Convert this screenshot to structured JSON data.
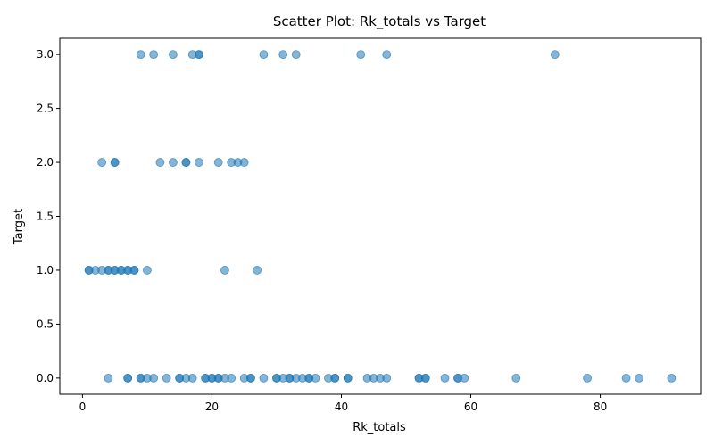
{
  "chart_data": {
    "type": "scatter",
    "title": "Scatter Plot: Rk_totals vs Target",
    "xlabel": "Rk_totals",
    "ylabel": "Target",
    "xlim": [
      -3.5,
      95.5
    ],
    "ylim": [
      -0.15,
      3.15
    ],
    "xticks": [
      0,
      20,
      40,
      60,
      80
    ],
    "xtick_labels": [
      "0",
      "20",
      "40",
      "60",
      "80"
    ],
    "yticks": [
      0.0,
      0.5,
      1.0,
      1.5,
      2.0,
      2.5,
      3.0
    ],
    "ytick_labels": [
      "0.0",
      "0.5",
      "1.0",
      "1.5",
      "2.0",
      "2.5",
      "3.0"
    ],
    "grid": false,
    "marker_color": "#1f77b4",
    "marker_alpha": 0.55,
    "series": [
      {
        "x": [
          9,
          11,
          14,
          17,
          18,
          18,
          28,
          31,
          33,
          43,
          47,
          73,
          3,
          5,
          5,
          12,
          14,
          16,
          16,
          18,
          21,
          23,
          24,
          25,
          1,
          1,
          2,
          3,
          4,
          4,
          5,
          5,
          6,
          6,
          7,
          7,
          8,
          8,
          10,
          22,
          27,
          4,
          7,
          7,
          9,
          9,
          10,
          11,
          13,
          15,
          15,
          16,
          17,
          19,
          19,
          20,
          20,
          21,
          21,
          22,
          23,
          25,
          26,
          26,
          28,
          30,
          30,
          31,
          32,
          32,
          33,
          34,
          35,
          35,
          36,
          38,
          39,
          39,
          41,
          41,
          44,
          45,
          46,
          47,
          52,
          52,
          53,
          53,
          56,
          58,
          58,
          59,
          67,
          78,
          84,
          86,
          91
        ],
        "y": [
          3,
          3,
          3,
          3,
          3,
          3,
          3,
          3,
          3,
          3,
          3,
          3,
          2,
          2,
          2,
          2,
          2,
          2,
          2,
          2,
          2,
          2,
          2,
          2,
          1,
          1,
          1,
          1,
          1,
          1,
          1,
          1,
          1,
          1,
          1,
          1,
          1,
          1,
          1,
          1,
          1,
          0,
          0,
          0,
          0,
          0,
          0,
          0,
          0,
          0,
          0,
          0,
          0,
          0,
          0,
          0,
          0,
          0,
          0,
          0,
          0,
          0,
          0,
          0,
          0,
          0,
          0,
          0,
          0,
          0,
          0,
          0,
          0,
          0,
          0,
          0,
          0,
          0,
          0,
          0,
          0,
          0,
          0,
          0,
          0,
          0,
          0,
          0,
          0,
          0,
          0,
          0,
          0,
          0,
          0,
          0,
          0
        ]
      }
    ]
  }
}
